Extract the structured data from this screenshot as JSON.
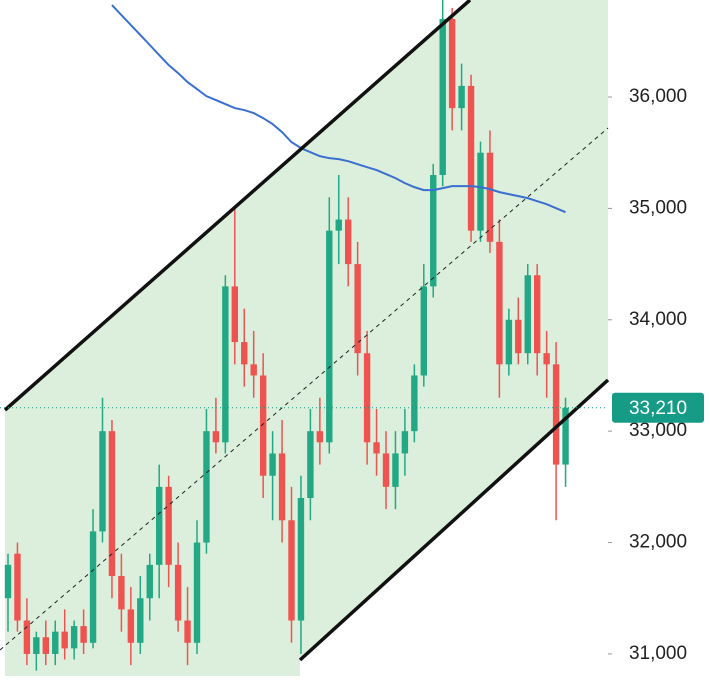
{
  "chart_data": {
    "type": "candlestick",
    "ylim": [
      30802,
      36871
    ],
    "yticks": [
      {
        "value": 31000,
        "label": "31,000"
      },
      {
        "value": 32000,
        "label": "32,000"
      },
      {
        "value": 33000,
        "label": "33,000"
      },
      {
        "value": 34000,
        "label": "34,000"
      },
      {
        "value": 35000,
        "label": "35,000"
      },
      {
        "value": 36000,
        "label": "36,000"
      }
    ],
    "up_color": "#22a884",
    "down_color": "#ef5350",
    "candles": [
      [
        31500,
        31900,
        31200,
        31800
      ],
      [
        31900,
        32000,
        31200,
        31300
      ],
      [
        31300,
        31500,
        30900,
        31000
      ],
      [
        31000,
        31200,
        30850,
        31150
      ],
      [
        31150,
        31300,
        30900,
        31000
      ],
      [
        31000,
        31300,
        30900,
        31200
      ],
      [
        31200,
        31400,
        30950,
        31050
      ],
      [
        31050,
        31300,
        30950,
        31250
      ],
      [
        31250,
        31400,
        31000,
        31100
      ],
      [
        31100,
        32300,
        31050,
        32100
      ],
      [
        32100,
        33300,
        32000,
        33000
      ],
      [
        33000,
        33100,
        31500,
        31700
      ],
      [
        31700,
        31900,
        31200,
        31400
      ],
      [
        31400,
        31600,
        30900,
        31100
      ],
      [
        31100,
        31700,
        31000,
        31500
      ],
      [
        31500,
        31900,
        31300,
        31800
      ],
      [
        31800,
        32700,
        31500,
        32500
      ],
      [
        32500,
        32600,
        31600,
        31800
      ],
      [
        31800,
        32000,
        31200,
        31300
      ],
      [
        31300,
        31600,
        30900,
        31100
      ],
      [
        31100,
        32200,
        31000,
        32000
      ],
      [
        32000,
        33200,
        31900,
        33000
      ],
      [
        33000,
        33300,
        32800,
        32900
      ],
      [
        32900,
        34400,
        32800,
        34300
      ],
      [
        34300,
        35000,
        33600,
        33800
      ],
      [
        33800,
        34100,
        33400,
        33600
      ],
      [
        33600,
        33900,
        33300,
        33500
      ],
      [
        33500,
        33700,
        32400,
        32600
      ],
      [
        32600,
        33000,
        32200,
        32800
      ],
      [
        32800,
        33100,
        32000,
        32200
      ],
      [
        32200,
        32500,
        31100,
        31300
      ],
      [
        31300,
        32600,
        31000,
        32400
      ],
      [
        32400,
        33200,
        32200,
        33000
      ],
      [
        33000,
        33300,
        32700,
        32900
      ],
      [
        32900,
        35100,
        32800,
        34800
      ],
      [
        34800,
        35300,
        34500,
        34900
      ],
      [
        34900,
        35100,
        34300,
        34500
      ],
      [
        34500,
        34700,
        33500,
        33700
      ],
      [
        33700,
        33900,
        32700,
        32900
      ],
      [
        32900,
        33200,
        32600,
        32800
      ],
      [
        32800,
        33000,
        32300,
        32500
      ],
      [
        32500,
        33000,
        32300,
        32800
      ],
      [
        32800,
        33200,
        32600,
        33000
      ],
      [
        33000,
        33600,
        32900,
        33500
      ],
      [
        33500,
        34500,
        33400,
        34300
      ],
      [
        34300,
        35400,
        34200,
        35300
      ],
      [
        35300,
        36900,
        35200,
        36700
      ],
      [
        36700,
        36800,
        35700,
        35900
      ],
      [
        35900,
        36300,
        35700,
        36100
      ],
      [
        36100,
        36200,
        34700,
        34800
      ],
      [
        34800,
        35600,
        34700,
        35500
      ],
      [
        35500,
        35700,
        34600,
        34700
      ],
      [
        34700,
        34900,
        33300,
        33600
      ],
      [
        33600,
        34100,
        33500,
        34000
      ],
      [
        34000,
        34200,
        33600,
        33700
      ],
      [
        33700,
        34500,
        33600,
        34400
      ],
      [
        34400,
        34500,
        33500,
        33700
      ],
      [
        33700,
        33900,
        33300,
        33600
      ],
      [
        33600,
        33800,
        32200,
        32700
      ],
      [
        32700,
        33300,
        32500,
        33210
      ]
    ],
    "ma": {
      "color": "#3a6fd0",
      "values": [
        null,
        null,
        null,
        null,
        null,
        null,
        null,
        null,
        null,
        null,
        null,
        36826,
        36736,
        36646,
        36557,
        36467,
        36377,
        36287,
        36215,
        36134,
        36071,
        36008,
        35973,
        35937,
        35901,
        35883,
        35856,
        35811,
        35757,
        35685,
        35595,
        35541,
        35505,
        35469,
        35451,
        35442,
        35424,
        35397,
        35370,
        35344,
        35308,
        35272,
        35227,
        35191,
        35164,
        35164,
        35182,
        35200,
        35200,
        35200,
        35191,
        35173,
        35146,
        35128,
        35110,
        35092,
        35065,
        35038,
        35002,
        34966
      ]
    },
    "last_price": {
      "value": 33210,
      "label": "33,210",
      "color": "#159b86"
    }
  }
}
